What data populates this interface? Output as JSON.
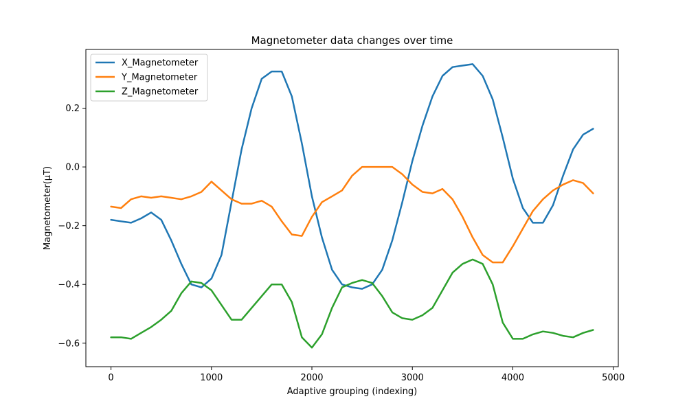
{
  "chart_data": {
    "type": "line",
    "title": "Magnetometer data changes over time",
    "xlabel": "Adaptive grouping (indexing)",
    "ylabel": "Magnetometer(μT)",
    "xlim": [
      -250,
      5050
    ],
    "ylim": [
      -0.68,
      0.4
    ],
    "xticks": [
      0,
      1000,
      2000,
      3000,
      4000,
      5000
    ],
    "xtick_labels": [
      "0",
      "1000",
      "2000",
      "3000",
      "4000",
      "5000"
    ],
    "yticks": [
      -0.6,
      -0.4,
      -0.2,
      0.0,
      0.2
    ],
    "ytick_labels": [
      "−0.6",
      "−0.4",
      "−0.2",
      "0.0",
      "0.2"
    ],
    "grid": false,
    "legend_position": "upper-left",
    "series": [
      {
        "name": "X_Magnetometer",
        "color": "#1f77b4",
        "x": [
          0,
          100,
          200,
          300,
          400,
          500,
          600,
          700,
          800,
          900,
          1000,
          1100,
          1200,
          1300,
          1400,
          1500,
          1600,
          1700,
          1800,
          1900,
          2000,
          2100,
          2200,
          2300,
          2400,
          2500,
          2600,
          2700,
          2800,
          2900,
          3000,
          3100,
          3200,
          3300,
          3400,
          3500,
          3600,
          3700,
          3800,
          3900,
          4000,
          4100,
          4200,
          4300,
          4400,
          4500,
          4600,
          4700,
          4800
        ],
        "y": [
          -0.18,
          -0.185,
          -0.19,
          -0.175,
          -0.155,
          -0.18,
          -0.25,
          -0.33,
          -0.4,
          -0.41,
          -0.38,
          -0.3,
          -0.12,
          0.06,
          0.2,
          0.3,
          0.325,
          0.325,
          0.24,
          0.08,
          -0.1,
          -0.24,
          -0.35,
          -0.4,
          -0.41,
          -0.415,
          -0.4,
          -0.35,
          -0.25,
          -0.12,
          0.02,
          0.14,
          0.24,
          0.31,
          0.34,
          0.345,
          0.35,
          0.31,
          0.23,
          0.1,
          -0.04,
          -0.14,
          -0.19,
          -0.19,
          -0.13,
          -0.03,
          0.06,
          0.11,
          0.13
        ]
      },
      {
        "name": "Y_Magnetometer",
        "color": "#ff7f0e",
        "x": [
          0,
          100,
          200,
          300,
          400,
          500,
          600,
          700,
          800,
          900,
          1000,
          1100,
          1200,
          1300,
          1400,
          1500,
          1600,
          1700,
          1800,
          1900,
          2000,
          2100,
          2200,
          2300,
          2400,
          2500,
          2600,
          2700,
          2800,
          2900,
          3000,
          3100,
          3200,
          3300,
          3400,
          3500,
          3600,
          3700,
          3800,
          3900,
          4000,
          4100,
          4200,
          4300,
          4400,
          4500,
          4600,
          4700,
          4800
        ],
        "y": [
          -0.135,
          -0.14,
          -0.11,
          -0.1,
          -0.105,
          -0.1,
          -0.105,
          -0.11,
          -0.1,
          -0.085,
          -0.05,
          -0.08,
          -0.11,
          -0.125,
          -0.125,
          -0.115,
          -0.135,
          -0.185,
          -0.23,
          -0.235,
          -0.17,
          -0.12,
          -0.1,
          -0.08,
          -0.03,
          0.0,
          0.0,
          0.0,
          0.0,
          -0.025,
          -0.06,
          -0.085,
          -0.09,
          -0.075,
          -0.11,
          -0.17,
          -0.24,
          -0.3,
          -0.325,
          -0.325,
          -0.27,
          -0.21,
          -0.15,
          -0.11,
          -0.08,
          -0.06,
          -0.045,
          -0.055,
          -0.09
        ]
      },
      {
        "name": "Z_Magnetometer",
        "color": "#2ca02c",
        "x": [
          0,
          100,
          200,
          300,
          400,
          500,
          600,
          700,
          800,
          900,
          1000,
          1100,
          1200,
          1300,
          1400,
          1500,
          1600,
          1700,
          1800,
          1900,
          2000,
          2100,
          2200,
          2300,
          2400,
          2500,
          2600,
          2700,
          2800,
          2900,
          3000,
          3100,
          3200,
          3300,
          3400,
          3500,
          3600,
          3700,
          3800,
          3900,
          4000,
          4100,
          4200,
          4300,
          4400,
          4500,
          4600,
          4700,
          4800
        ],
        "y": [
          -0.58,
          -0.58,
          -0.585,
          -0.565,
          -0.545,
          -0.52,
          -0.49,
          -0.43,
          -0.39,
          -0.395,
          -0.42,
          -0.47,
          -0.52,
          -0.52,
          -0.48,
          -0.44,
          -0.4,
          -0.4,
          -0.46,
          -0.58,
          -0.615,
          -0.57,
          -0.48,
          -0.41,
          -0.395,
          -0.385,
          -0.395,
          -0.44,
          -0.495,
          -0.515,
          -0.52,
          -0.505,
          -0.48,
          -0.42,
          -0.36,
          -0.33,
          -0.315,
          -0.33,
          -0.4,
          -0.53,
          -0.585,
          -0.585,
          -0.57,
          -0.56,
          -0.565,
          -0.575,
          -0.58,
          -0.565,
          -0.555
        ]
      }
    ]
  }
}
